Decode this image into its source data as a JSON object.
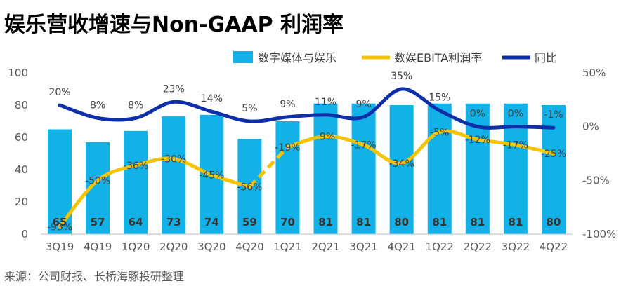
{
  "header": {
    "title": "娱乐营收增速与Non-GAAP 利润率"
  },
  "footer": {
    "source": "来源：公司财报、长桥海豚投研整理"
  },
  "colors": {
    "bar": "#12B1E8",
    "margin": "#F5C400",
    "yoy": "#0E2FA8",
    "axis": "#595959"
  },
  "chart_data": {
    "type": "bar",
    "title": "娱乐营收增速与Non-GAAP 利润率",
    "categories": [
      "3Q19",
      "4Q19",
      "1Q20",
      "2Q20",
      "3Q20",
      "4Q20",
      "1Q21",
      "2Q21",
      "3Q21",
      "4Q21",
      "1Q22",
      "2Q22",
      "3Q22",
      "4Q22"
    ],
    "y_left": {
      "min": 0,
      "max": 100,
      "ticks": [
        "0",
        "20",
        "40",
        "60",
        "80",
        "100"
      ]
    },
    "y_right": {
      "min": -100,
      "max": 50,
      "ticks": [
        "-100%",
        "-50%",
        "0%",
        "50%"
      ]
    },
    "legend_position": "top-right",
    "series": [
      {
        "name": "数字媒体与娱乐",
        "type": "bar",
        "axis": "left",
        "values": [
          65,
          57,
          64,
          73,
          74,
          59,
          70,
          81,
          81,
          80,
          81,
          81,
          81,
          80
        ],
        "labels": [
          "65",
          "57",
          "64",
          "73",
          "74",
          "59",
          "70",
          "81",
          "81",
          "80",
          "81",
          "81",
          "81",
          "80"
        ]
      },
      {
        "name": "数娱EBITA利润率",
        "type": "line",
        "axis": "right",
        "values": [
          -93,
          -50,
          -36,
          -30,
          -45,
          -56,
          -19,
          -9,
          -17,
          -34,
          -5,
          -12,
          -17,
          -25
        ],
        "labels": [
          "-93%",
          "-50%",
          "-36%",
          "-30%",
          "-45%",
          "-56%",
          "-19%",
          "-9%",
          "-17%",
          "-34%",
          "-5%",
          "-12%",
          "-17%",
          "-25%"
        ]
      },
      {
        "name": "同比",
        "type": "line",
        "axis": "right",
        "values": [
          20,
          8,
          8,
          23,
          14,
          5,
          9,
          11,
          9,
          35,
          15,
          0,
          0,
          -1
        ],
        "labels": [
          "20%",
          "8%",
          "8%",
          "23%",
          "14%",
          "5%",
          "9%",
          "11%",
          "9%",
          "35%",
          "15%",
          "0%",
          "0%",
          "-1%"
        ]
      }
    ]
  }
}
